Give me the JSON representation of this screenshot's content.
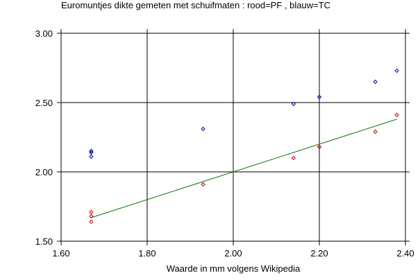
{
  "chart_data": {
    "type": "scatter",
    "title": "Euromuntjes dikte gemeten met schuifmaten : rood=PF , blauw=TC",
    "xlabel": "Waarde in mm volgens Wikipedia",
    "ylabel": "",
    "xlim": [
      1.6,
      2.4
    ],
    "ylim": [
      1.5,
      3.0
    ],
    "x_ticks": [
      "1.60",
      "1.80",
      "2.00",
      "2.20",
      "2.40"
    ],
    "y_ticks": [
      "1.50",
      "2.00",
      "2.50",
      "3.00"
    ],
    "grid_x": [
      1.8,
      2.0,
      2.2
    ],
    "grid_y": [
      2.0,
      2.5
    ],
    "grid": true,
    "series": [
      {
        "color": "#0000cc",
        "marker": "diamond",
        "points": [
          {
            "x": 1.67,
            "y": 2.15
          },
          {
            "x": 1.67,
            "y": 2.14
          },
          {
            "x": 1.67,
            "y": 2.11
          },
          {
            "x": 1.93,
            "y": 2.31
          },
          {
            "x": 2.14,
            "y": 2.49
          },
          {
            "x": 2.2,
            "y": 2.54
          },
          {
            "x": 2.33,
            "y": 2.65
          },
          {
            "x": 2.38,
            "y": 2.73
          }
        ]
      },
      {
        "color": "#cc0000",
        "marker": "diamond",
        "points": [
          {
            "x": 1.67,
            "y": 1.71
          },
          {
            "x": 1.67,
            "y": 1.68
          },
          {
            "x": 1.67,
            "y": 1.64
          },
          {
            "x": 1.93,
            "y": 1.91
          },
          {
            "x": 2.14,
            "y": 2.1
          },
          {
            "x": 2.2,
            "y": 2.18
          },
          {
            "x": 2.33,
            "y": 2.29
          },
          {
            "x": 2.38,
            "y": 2.41
          }
        ]
      }
    ],
    "lines": [
      {
        "color": "#007700",
        "points": [
          {
            "x": 1.67,
            "y": 1.67
          },
          {
            "x": 2.38,
            "y": 2.38
          }
        ]
      }
    ]
  }
}
